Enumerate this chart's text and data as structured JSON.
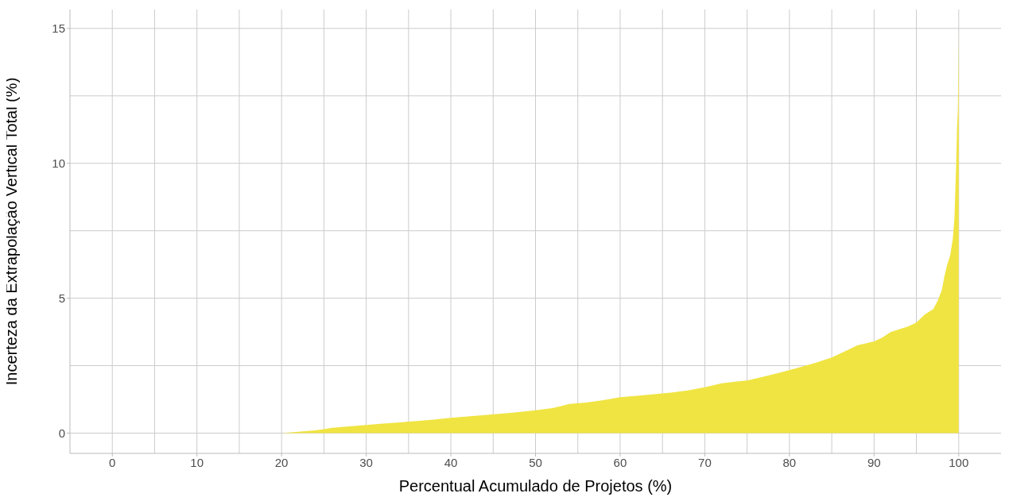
{
  "chart_data": {
    "type": "area",
    "xlabel": "Percentual Acumulado de Projetos (%)",
    "ylabel": "Incerteza da Extrapolação Vertical Total (%)",
    "x": [
      20,
      22,
      24,
      25,
      26,
      28,
      30,
      32,
      34,
      36,
      38,
      40,
      42,
      44,
      46,
      48,
      50,
      52,
      53,
      54,
      56,
      58,
      60,
      62,
      64,
      66,
      68,
      70,
      72,
      74,
      75,
      77,
      79,
      81,
      83,
      85,
      87,
      88,
      90,
      91,
      92,
      94,
      95,
      96,
      97,
      97.5,
      98,
      98.3,
      98.6,
      99,
      99.3,
      99.5,
      99.6,
      99.7,
      99.8,
      99.9,
      100
    ],
    "series": [
      {
        "color": "#f0e442",
        "values": [
          0,
          0.05,
          0.1,
          0.15,
          0.2,
          0.25,
          0.3,
          0.35,
          0.4,
          0.45,
          0.5,
          0.57,
          0.62,
          0.67,
          0.72,
          0.78,
          0.85,
          0.93,
          1.0,
          1.08,
          1.13,
          1.22,
          1.33,
          1.38,
          1.44,
          1.5,
          1.58,
          1.7,
          1.85,
          1.92,
          1.95,
          2.1,
          2.25,
          2.42,
          2.6,
          2.8,
          3.1,
          3.25,
          3.4,
          3.55,
          3.75,
          3.95,
          4.1,
          4.4,
          4.6,
          4.9,
          5.3,
          5.8,
          6.2,
          6.6,
          7.2,
          8.0,
          9.0,
          10.0,
          11.3,
          12.0,
          14.8
        ]
      }
    ],
    "xlim": [
      -5,
      105
    ],
    "xticks": [
      0,
      10,
      20,
      30,
      40,
      50,
      60,
      70,
      80,
      90,
      100
    ],
    "ylim": [
      -0.75,
      15.7
    ],
    "yticks": [
      0,
      5,
      10,
      15
    ],
    "grid": true,
    "legend": false
  }
}
